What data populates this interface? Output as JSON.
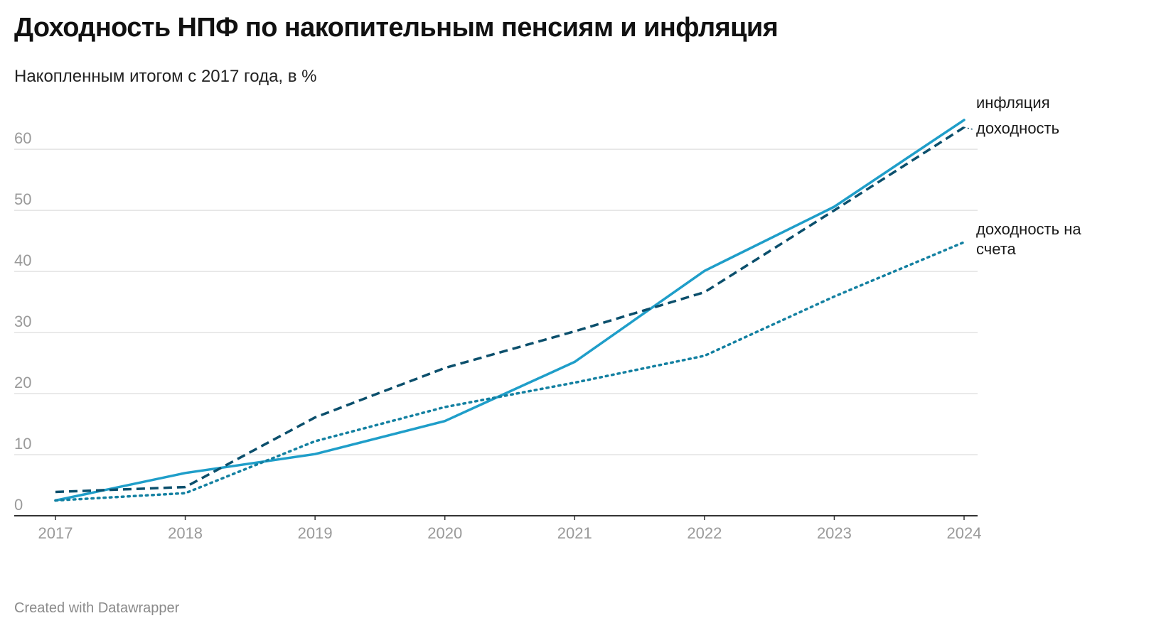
{
  "header": {
    "title": "Доходность НПФ по накопительным пенсиям и инфляция",
    "subtitle": "Накопленным итогом с 2017 года, в %"
  },
  "footer": {
    "credit": "Created with Datawrapper"
  },
  "chart_data": {
    "type": "line",
    "title": "Доходность НПФ по накопительным пенсиям и инфляция",
    "subtitle": "Накопленным итогом с 2017 года, в %",
    "xlabel": "",
    "ylabel": "",
    "x": [
      "2017",
      "2018",
      "2019",
      "2020",
      "2021",
      "2022",
      "2023",
      "2024"
    ],
    "ylim": [
      0,
      67
    ],
    "yticks": [
      "0",
      "10",
      "20",
      "30",
      "40",
      "50",
      "60"
    ],
    "grid": true,
    "series": [
      {
        "name": "инфляция",
        "label_lines": [
          "инфляция"
        ],
        "style": "solid",
        "color": "#1f9ec9",
        "values": [
          2.5,
          7.0,
          10.1,
          15.5,
          25.2,
          40.1,
          50.6,
          64.8
        ]
      },
      {
        "name": "доходность",
        "label_lines": [
          "доходность"
        ],
        "style": "dashed",
        "color": "#0b4f6c",
        "values": [
          3.9,
          4.7,
          16.1,
          24.2,
          30.2,
          36.6,
          50.0,
          63.6
        ]
      },
      {
        "name": "доходность на счета",
        "label_lines": [
          "доходность на",
          "счета"
        ],
        "style": "dotted",
        "color": "#1380a1",
        "values": [
          2.5,
          3.7,
          12.2,
          17.8,
          21.8,
          26.2,
          35.9,
          44.8
        ]
      }
    ]
  }
}
